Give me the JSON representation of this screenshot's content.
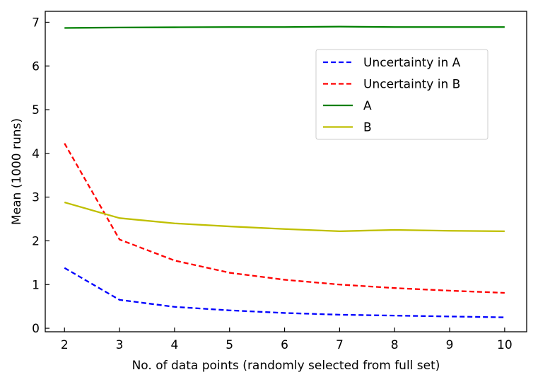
{
  "chart_data": {
    "type": "line",
    "title": "",
    "xlabel": "No. of data points (randomly selected from full set)",
    "ylabel": "Mean (1000 runs)",
    "x": [
      2,
      3,
      4,
      5,
      6,
      7,
      8,
      9,
      10
    ],
    "xlim": [
      1.65,
      10.4
    ],
    "ylim": [
      -0.08,
      7.25
    ],
    "xticks": [
      2,
      3,
      4,
      5,
      6,
      7,
      8,
      9,
      10
    ],
    "yticks": [
      0,
      1,
      2,
      3,
      4,
      5,
      6,
      7
    ],
    "grid": false,
    "legend_position": "upper-right",
    "series": [
      {
        "name": "Uncertainty in A",
        "style": "dashed",
        "color": "#0000ff",
        "values": [
          1.38,
          0.65,
          0.49,
          0.41,
          0.35,
          0.31,
          0.29,
          0.27,
          0.25
        ]
      },
      {
        "name": "Uncertainty in B",
        "style": "dashed",
        "color": "#ff0000",
        "values": [
          4.23,
          2.03,
          1.55,
          1.27,
          1.11,
          1.0,
          0.92,
          0.86,
          0.81
        ]
      },
      {
        "name": "A",
        "style": "solid",
        "color": "#008000",
        "values": [
          6.87,
          6.88,
          6.885,
          6.89,
          6.89,
          6.9,
          6.89,
          6.89,
          6.89
        ]
      },
      {
        "name": "B",
        "style": "solid",
        "color": "#bfbf00",
        "values": [
          2.88,
          2.52,
          2.4,
          2.33,
          2.27,
          2.22,
          2.25,
          2.23,
          2.22
        ]
      }
    ]
  }
}
